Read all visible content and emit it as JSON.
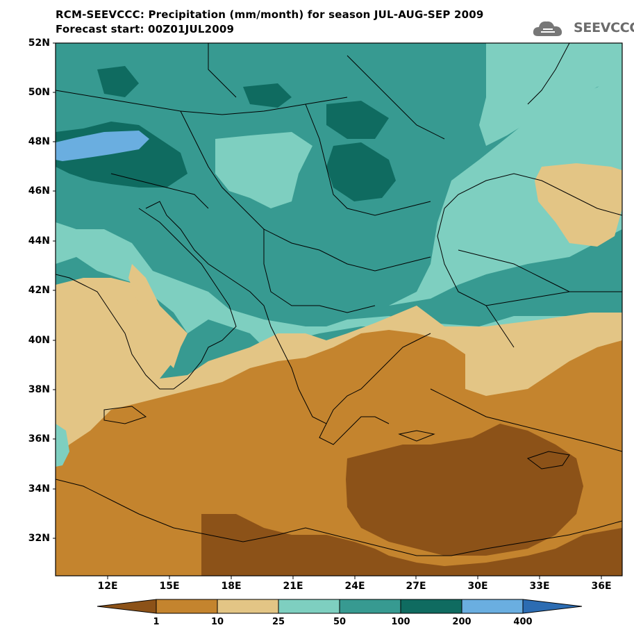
{
  "title_line1": "RCM-SEEVCCC: Precipitation (mm/month) for season JUL-AUG-SEP 2009",
  "title_line2": "Forecast start: 00Z01JUL2009",
  "logo_text": "SEEVCCC",
  "lat_labels": [
    "52N",
    "50N",
    "48N",
    "46N",
    "44N",
    "42N",
    "40N",
    "38N",
    "36N",
    "34N",
    "32N"
  ],
  "lon_labels": [
    "12E",
    "15E",
    "18E",
    "21E",
    "24E",
    "27E",
    "30E",
    "33E",
    "36E"
  ],
  "colorbar": {
    "levels": [
      "1",
      "10",
      "25",
      "50",
      "100",
      "200",
      "400"
    ],
    "colors": [
      "#8c5218",
      "#c4842e",
      "#e3c585",
      "#7ecfc0",
      "#379a91",
      "#0f6b60",
      "#6aaee0",
      "#2c6cb2"
    ]
  },
  "map": {
    "region": "Southeast Europe and Eastern Mediterranean",
    "lon_range": [
      9.5,
      37
    ],
    "lat_range": [
      30.5,
      52
    ],
    "variable": "Precipitation",
    "units": "mm/month"
  }
}
